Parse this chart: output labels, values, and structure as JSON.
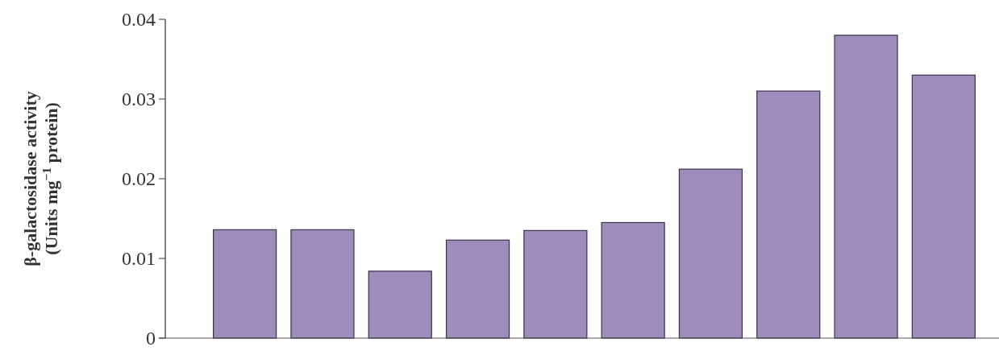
{
  "chart_data": {
    "type": "bar",
    "ylabel": "β-galactosidase activity\n(Units mg$^{−1}$ protein)",
    "categories": [
      null,
      null,
      null,
      null,
      null,
      null,
      null,
      null,
      null,
      null
    ],
    "values": [
      0.0136,
      0.0136,
      0.0084,
      0.0123,
      0.0135,
      0.0145,
      0.0212,
      0.031,
      0.038,
      0.033
    ],
    "color": "#a08cbc",
    "ylim": [
      0,
      0.04
    ],
    "yticks": [
      0,
      0.01,
      0.02,
      0.03,
      0.04
    ],
    "grid": false
  }
}
